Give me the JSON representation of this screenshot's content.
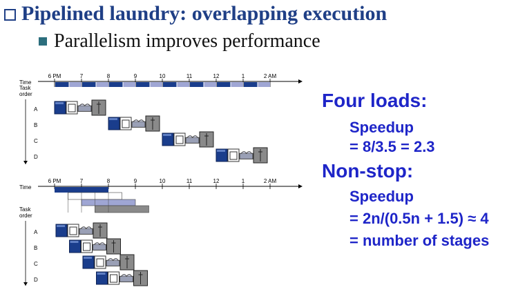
{
  "title": "Pipelined laundry: overlapping execution",
  "subtitle": "Parallelism improves performance",
  "diagram": {
    "time_label": "Time",
    "task_order_label": [
      "Task",
      "order"
    ],
    "time_ticks": [
      "6 PM",
      "7",
      "8",
      "9",
      "10",
      "11",
      "12",
      "1",
      "2 AM"
    ],
    "tasks": [
      "A",
      "B",
      "C",
      "D"
    ],
    "stages": [
      "washer-icon",
      "dryer-icon",
      "folding-icon",
      "closet-icon"
    ],
    "colors": {
      "washer": "#1a3d8c",
      "fold": "#9fa6d4",
      "closet": "#8a8a8a",
      "accent": "#1f3f86"
    }
  },
  "right": {
    "heading1": "Four loads:",
    "speedup1": "Speedup",
    "formula1": "= 8/3.5 = 2.3",
    "heading2": "Non-stop:",
    "speedup2": "Speedup",
    "formula2": "= 2n/(0.5n + 1.5) ≈ 4",
    "formula3": "= number of stages"
  }
}
